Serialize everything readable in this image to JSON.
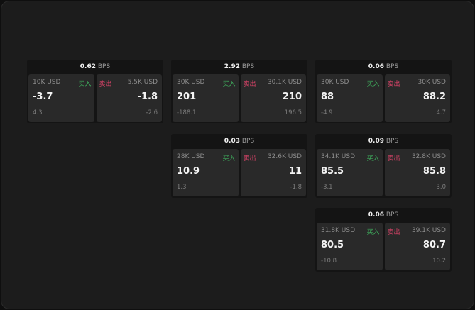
{
  "unit": "BPS",
  "buy_label": "买入",
  "sell_label": "卖出",
  "colors": {
    "buy": "#3fae5d",
    "sell": "#e0446a"
  },
  "cards": [
    {
      "spread": "0.62",
      "buy": {
        "size": "10K USD",
        "price": "-3.7",
        "change": "4.3"
      },
      "sell": {
        "size": "5.5K USD",
        "price": "-1.8",
        "change": "-2.6"
      }
    },
    {
      "spread": "2.92",
      "buy": {
        "size": "30K USD",
        "price": "201",
        "change": "-188.1"
      },
      "sell": {
        "size": "30.1K USD",
        "price": "210",
        "change": "196.5"
      }
    },
    {
      "spread": "0.06",
      "buy": {
        "size": "30K USD",
        "price": "88",
        "change": "-4.9"
      },
      "sell": {
        "size": "30K USD",
        "price": "88.2",
        "change": "4.7"
      }
    },
    {
      "spread": "0.03",
      "buy": {
        "size": "28K USD",
        "price": "10.9",
        "change": "1.3"
      },
      "sell": {
        "size": "32.6K USD",
        "price": "11",
        "change": "-1.8"
      }
    },
    {
      "spread": "0.09",
      "buy": {
        "size": "34.1K USD",
        "price": "85.5",
        "change": "-3.1"
      },
      "sell": {
        "size": "32.8K USD",
        "price": "85.8",
        "change": "3.0"
      }
    },
    {
      "spread": "0.06",
      "buy": {
        "size": "31.8K USD",
        "price": "80.5",
        "change": "-10.8"
      },
      "sell": {
        "size": "39.1K USD",
        "price": "80.7",
        "change": "10.2"
      }
    }
  ]
}
